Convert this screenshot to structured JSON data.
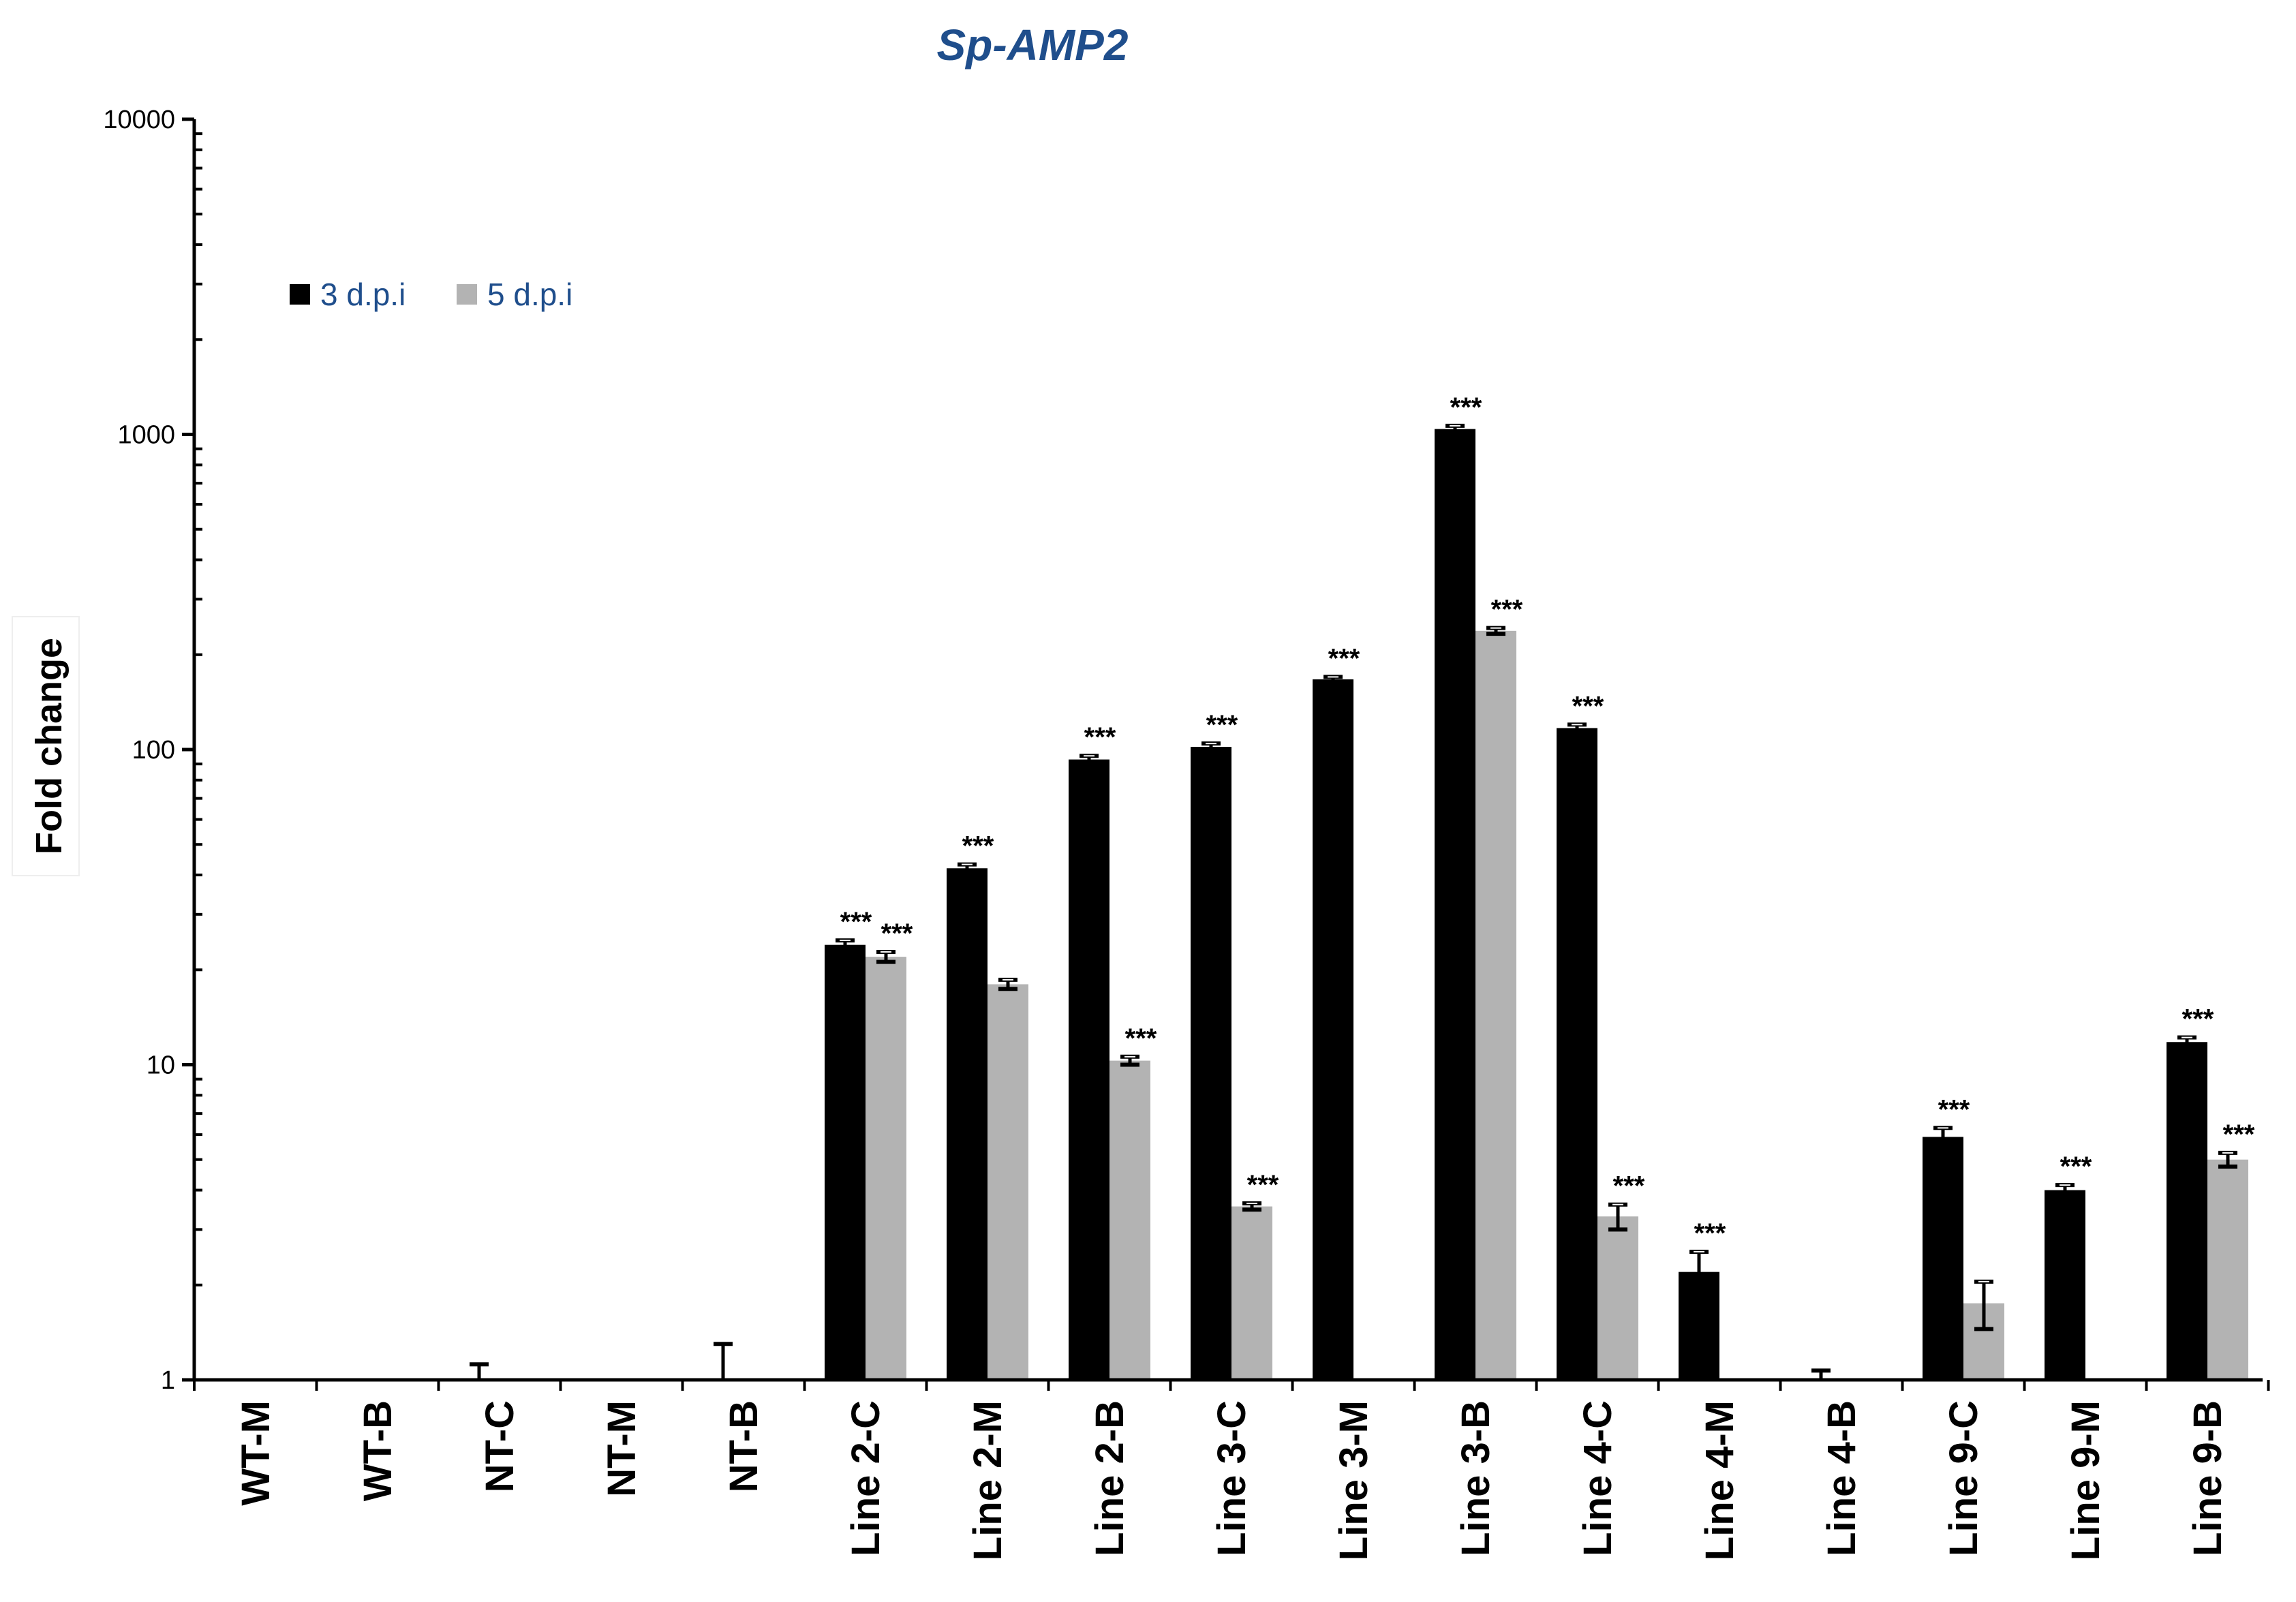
{
  "chart_data": {
    "type": "bar",
    "title": "Sp-AMP2",
    "ylabel": "Fold change",
    "xlabel": "",
    "yscale": "log",
    "ylim": [
      1,
      10000
    ],
    "ytick_labels": [
      "1",
      "10",
      "100",
      "1000",
      "10000"
    ],
    "legend_position": "top-left",
    "categories": [
      "WT-M",
      "WT-B",
      "NT-C",
      "NT-M",
      "NT-B",
      "Line 2-C",
      "Line 2-M",
      "Line 2-B",
      "Line 3-C",
      "Line 3-M",
      "Line 3-B",
      "Line 4-C",
      "Line 4-M",
      "Line 4-B",
      "Line 9-C",
      "Line 9-M",
      "Line 9-B"
    ],
    "series": [
      {
        "name": "3 d.p.i",
        "color": "#000000",
        "values": [
          1,
          1,
          1,
          1,
          1,
          24,
          42,
          93,
          102,
          167,
          1040,
          117,
          2.2,
          1,
          5.9,
          4.0,
          11.8
        ],
        "errors": [
          0,
          0,
          0.12,
          0,
          0.3,
          0.8,
          1.2,
          2.5,
          2.5,
          3,
          25,
          3,
          0.35,
          0.07,
          0.4,
          0.15,
          0.4
        ]
      },
      {
        "name": "5 d.p.i",
        "color": "#b3b3b3",
        "values": [
          1,
          1,
          1,
          1,
          1,
          22,
          18,
          10.3,
          3.55,
          1,
          238,
          3.3,
          1,
          1,
          1.75,
          1,
          5.0
        ],
        "errors": [
          0,
          0,
          0,
          0,
          0,
          0.8,
          0.6,
          0.3,
          0.08,
          0,
          5,
          0.3,
          0,
          0,
          0.3,
          0,
          0.25
        ]
      }
    ],
    "significance": [
      {
        "category": "Line 2-C",
        "series": "3 d.p.i",
        "label": "***"
      },
      {
        "category": "Line 2-C",
        "series": "5 d.p.i",
        "label": "***"
      },
      {
        "category": "Line 2-M",
        "series": "3 d.p.i",
        "label": "***"
      },
      {
        "category": "Line 2-B",
        "series": "3 d.p.i",
        "label": "***"
      },
      {
        "category": "Line 2-B",
        "series": "5 d.p.i",
        "label": "***"
      },
      {
        "category": "Line 3-C",
        "series": "3 d.p.i",
        "label": "***"
      },
      {
        "category": "Line 3-C",
        "series": "5 d.p.i",
        "label": "***"
      },
      {
        "category": "Line 3-M",
        "series": "3 d.p.i",
        "label": "***"
      },
      {
        "category": "Line 3-B",
        "series": "3 d.p.i",
        "label": "***"
      },
      {
        "category": "Line 3-B",
        "series": "5 d.p.i",
        "label": "***"
      },
      {
        "category": "Line 4-C",
        "series": "3 d.p.i",
        "label": "***"
      },
      {
        "category": "Line 4-C",
        "series": "5 d.p.i",
        "label": "***"
      },
      {
        "category": "Line 4-M",
        "series": "3 d.p.i",
        "label": "***"
      },
      {
        "category": "Line 9-C",
        "series": "3 d.p.i",
        "label": "***"
      },
      {
        "category": "Line 9-M",
        "series": "3 d.p.i",
        "label": "***"
      },
      {
        "category": "Line 9-B",
        "series": "3 d.p.i",
        "label": "***"
      },
      {
        "category": "Line 9-B",
        "series": "5 d.p.i",
        "label": "***"
      }
    ]
  }
}
